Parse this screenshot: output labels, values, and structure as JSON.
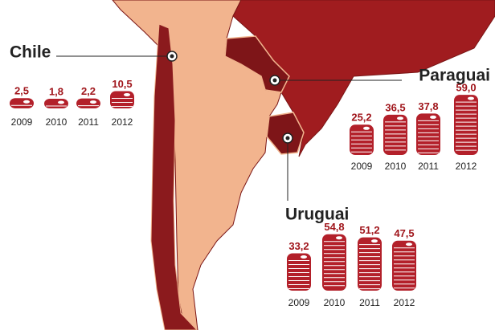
{
  "chart_data": [
    {
      "type": "pictogram",
      "title": "Chile",
      "categories": [
        "2009",
        "2010",
        "2011",
        "2012"
      ],
      "values": [
        2.5,
        1.8,
        2.2,
        10.5
      ],
      "value_labels": [
        "2,5",
        "1,8",
        "2,2",
        "10,5"
      ],
      "color": "#b3202a"
    },
    {
      "type": "pictogram",
      "title": "Paraguai",
      "categories": [
        "2009",
        "2010",
        "2011",
        "2012"
      ],
      "values": [
        25.2,
        36.5,
        37.8,
        59.0
      ],
      "value_labels": [
        "25,2",
        "36,5",
        "37,8",
        "59,0"
      ],
      "color": "#b3202a"
    },
    {
      "type": "pictogram",
      "title": "Uruguai",
      "categories": [
        "2009",
        "2010",
        "2011",
        "2012"
      ],
      "values": [
        33.2,
        54.8,
        51.2,
        47.5
      ],
      "value_labels": [
        "33,2",
        "54,8",
        "51,2",
        "47,5"
      ],
      "color": "#b3202a"
    }
  ]
}
